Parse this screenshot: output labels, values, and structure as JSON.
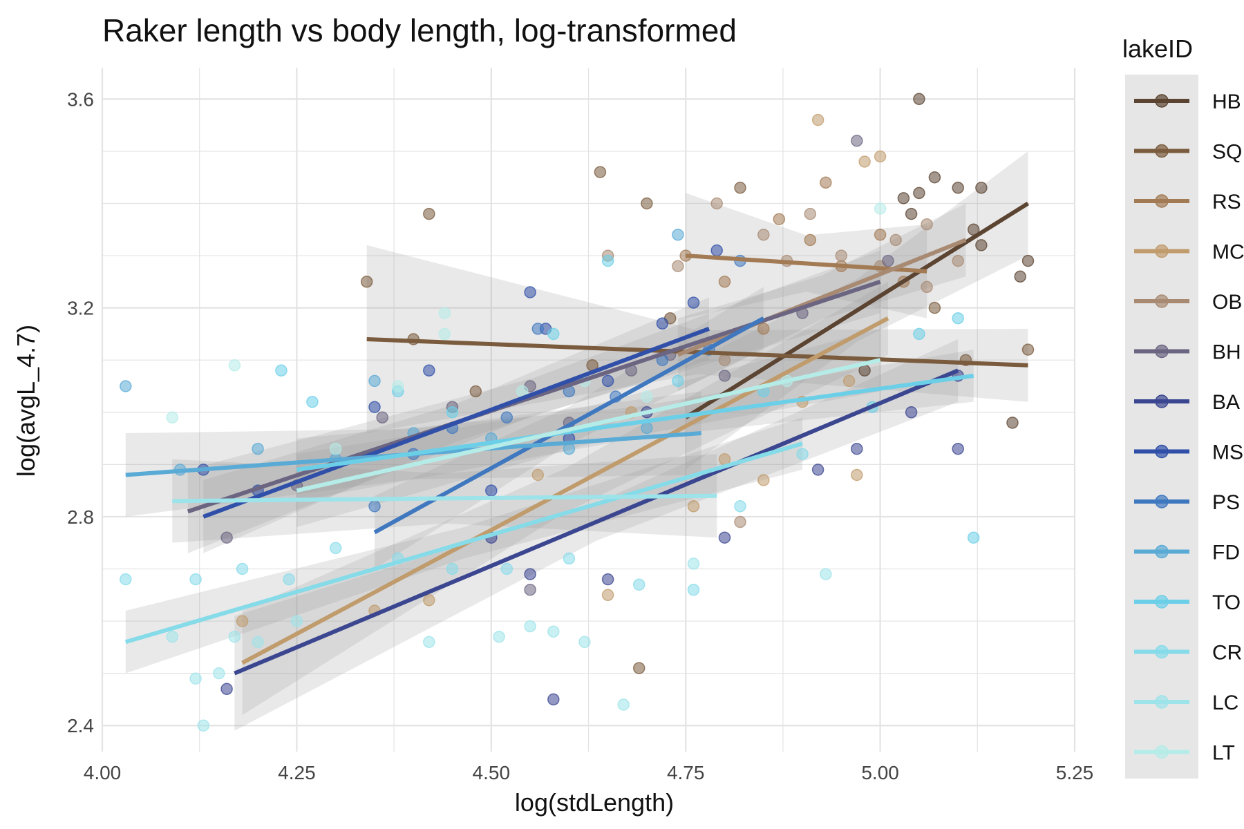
{
  "chart_data": {
    "type": "scatter",
    "title": "Raker length vs body length, log-transformed",
    "xlabel": "log(stdLength)",
    "ylabel": "log(avgL_4.7)",
    "xlim": [
      4.0,
      5.25
    ],
    "ylim": [
      2.35,
      3.66
    ],
    "x_ticks": [
      "4.00",
      "4.25",
      "4.50",
      "4.75",
      "5.00",
      "5.25"
    ],
    "y_ticks": [
      "2.4",
      "2.8",
      "3.2",
      "3.6"
    ],
    "grid": true,
    "legend_title": "lakeID",
    "legend_position": "right",
    "series": [
      {
        "name": "HB",
        "color": "#5b4431",
        "fit": {
          "x": [
            4.75,
            5.19
          ],
          "y": [
            2.99,
            3.4
          ],
          "band": [
            0.1,
            0.1
          ]
        },
        "points": [
          [
            4.98,
            3.08
          ],
          [
            5.05,
            3.6
          ],
          [
            5.05,
            3.42
          ],
          [
            5.07,
            3.45
          ],
          [
            5.1,
            3.43
          ],
          [
            5.13,
            3.43
          ],
          [
            5.12,
            3.35
          ],
          [
            5.13,
            3.32
          ],
          [
            5.18,
            3.26
          ],
          [
            5.19,
            3.29
          ],
          [
            5.17,
            2.98
          ],
          [
            5.03,
            3.41
          ],
          [
            5.04,
            3.38
          ]
        ]
      },
      {
        "name": "SQ",
        "color": "#7a5b3d",
        "fit": {
          "x": [
            4.34,
            5.19
          ],
          "y": [
            3.14,
            3.09
          ],
          "band": [
            0.18,
            0.07
          ]
        },
        "points": [
          [
            4.34,
            3.25
          ],
          [
            4.42,
            3.38
          ],
          [
            4.64,
            3.46
          ],
          [
            4.7,
            3.4
          ],
          [
            4.63,
            3.09
          ],
          [
            4.69,
            2.51
          ],
          [
            5.07,
            3.2
          ],
          [
            5.19,
            3.12
          ],
          [
            5.11,
            3.1
          ],
          [
            4.82,
            3.43
          ],
          [
            4.73,
            3.18
          ],
          [
            4.4,
            3.14
          ],
          [
            4.48,
            3.04
          ]
        ]
      },
      {
        "name": "RS",
        "color": "#a27a54",
        "fit": {
          "x": [
            4.75,
            5.06
          ],
          "y": [
            3.3,
            3.27
          ],
          "band": [
            0.12,
            0.09
          ]
        },
        "points": [
          [
            4.75,
            3.3
          ],
          [
            4.8,
            3.25
          ],
          [
            4.87,
            3.37
          ],
          [
            4.91,
            3.33
          ],
          [
            4.95,
            3.28
          ],
          [
            5.03,
            3.25
          ],
          [
            4.93,
            3.44
          ],
          [
            4.85,
            3.16
          ],
          [
            5.0,
            3.34
          ]
        ]
      },
      {
        "name": "MC",
        "color": "#c09b6c",
        "fit": {
          "x": [
            4.18,
            5.01
          ],
          "y": [
            2.52,
            3.18
          ],
          "band": [
            0.1,
            0.07
          ]
        },
        "points": [
          [
            4.18,
            2.6
          ],
          [
            4.35,
            2.62
          ],
          [
            4.42,
            2.64
          ],
          [
            4.56,
            2.88
          ],
          [
            4.65,
            2.65
          ],
          [
            4.76,
            2.82
          ],
          [
            4.9,
            3.02
          ],
          [
            4.96,
            3.06
          ],
          [
            5.0,
            3.49
          ],
          [
            4.92,
            3.56
          ],
          [
            4.98,
            3.48
          ],
          [
            4.8,
            2.91
          ],
          [
            4.85,
            2.87
          ],
          [
            4.97,
            2.88
          ],
          [
            4.68,
            3.0
          ]
        ]
      },
      {
        "name": "OB",
        "color": "#a88a73",
        "fit": {
          "x": [
            4.74,
            5.11
          ],
          "y": [
            3.11,
            3.33
          ],
          "band": [
            0.07,
            0.07
          ]
        },
        "points": [
          [
            4.74,
            3.28
          ],
          [
            4.79,
            3.4
          ],
          [
            4.85,
            3.34
          ],
          [
            4.88,
            3.29
          ],
          [
            4.91,
            3.38
          ],
          [
            4.95,
            3.3
          ],
          [
            5.0,
            3.28
          ],
          [
            5.02,
            3.33
          ],
          [
            5.06,
            3.36
          ],
          [
            5.1,
            3.29
          ],
          [
            4.8,
            3.1
          ],
          [
            4.65,
            3.3
          ],
          [
            4.82,
            2.79
          ],
          [
            5.06,
            3.24
          ]
        ]
      },
      {
        "name": "BH",
        "color": "#6b6582",
        "fit": {
          "x": [
            4.11,
            5.0
          ],
          "y": [
            2.81,
            3.25
          ],
          "band": [
            0.08,
            0.06
          ]
        },
        "points": [
          [
            4.16,
            2.76
          ],
          [
            4.25,
            2.86
          ],
          [
            4.36,
            2.99
          ],
          [
            4.45,
            3.01
          ],
          [
            4.55,
            3.05
          ],
          [
            4.6,
            2.98
          ],
          [
            4.68,
            3.08
          ],
          [
            4.73,
            3.11
          ],
          [
            4.8,
            3.07
          ],
          [
            4.9,
            3.19
          ],
          [
            4.97,
            3.52
          ],
          [
            5.01,
            3.29
          ],
          [
            4.55,
            2.66
          ]
        ]
      },
      {
        "name": "BA",
        "color": "#3b4690",
        "fit": {
          "x": [
            4.17,
            5.1
          ],
          "y": [
            2.5,
            3.08
          ],
          "band": [
            0.11,
            0.06
          ]
        },
        "points": [
          [
            4.16,
            2.47
          ],
          [
            4.58,
            2.45
          ],
          [
            4.65,
            2.68
          ],
          [
            4.8,
            2.76
          ],
          [
            4.92,
            2.89
          ],
          [
            4.97,
            2.93
          ],
          [
            5.04,
            3.0
          ],
          [
            5.1,
            3.07
          ],
          [
            4.7,
            3.0
          ],
          [
            4.55,
            2.69
          ],
          [
            5.1,
            2.93
          ],
          [
            4.5,
            2.76
          ]
        ]
      },
      {
        "name": "MS",
        "color": "#2f4fa8",
        "fit": {
          "x": [
            4.13,
            4.78
          ],
          "y": [
            2.8,
            3.16
          ],
          "band": [
            0.07,
            0.06
          ]
        },
        "points": [
          [
            4.13,
            2.89
          ],
          [
            4.2,
            2.85
          ],
          [
            4.35,
            3.01
          ],
          [
            4.42,
            3.08
          ],
          [
            4.55,
            3.23
          ],
          [
            4.57,
            3.16
          ],
          [
            4.65,
            3.06
          ],
          [
            4.72,
            3.17
          ],
          [
            4.76,
            3.21
          ],
          [
            4.79,
            3.31
          ],
          [
            4.6,
            2.95
          ],
          [
            4.5,
            2.85
          ]
        ]
      },
      {
        "name": "PS",
        "color": "#3f78bf",
        "fit": {
          "x": [
            4.35,
            4.85
          ],
          "y": [
            2.77,
            3.18
          ],
          "band": [
            0.07,
            0.06
          ]
        },
        "points": [
          [
            4.35,
            2.82
          ],
          [
            4.4,
            2.92
          ],
          [
            4.45,
            2.97
          ],
          [
            4.52,
            2.99
          ],
          [
            4.6,
            3.04
          ],
          [
            4.66,
            3.03
          ],
          [
            4.72,
            3.1
          ],
          [
            4.78,
            3.12
          ],
          [
            4.82,
            3.29
          ],
          [
            4.56,
            3.16
          ]
        ]
      },
      {
        "name": "FD",
        "color": "#5aaad6",
        "fit": {
          "x": [
            4.03,
            4.77
          ],
          "y": [
            2.88,
            2.96
          ],
          "band": [
            0.08,
            0.08
          ]
        },
        "points": [
          [
            4.03,
            3.05
          ],
          [
            4.1,
            2.89
          ],
          [
            4.2,
            2.93
          ],
          [
            4.3,
            2.91
          ],
          [
            4.4,
            2.96
          ],
          [
            4.5,
            2.95
          ],
          [
            4.6,
            2.93
          ],
          [
            4.7,
            2.97
          ],
          [
            4.74,
            3.34
          ],
          [
            4.35,
            3.06
          ]
        ]
      },
      {
        "name": "TO",
        "color": "#6ccfe8",
        "fit": {
          "x": [
            4.25,
            5.12
          ],
          "y": [
            2.89,
            3.07
          ],
          "band": [
            0.06,
            0.05
          ]
        },
        "points": [
          [
            4.23,
            3.08
          ],
          [
            4.27,
            3.02
          ],
          [
            4.38,
            3.04
          ],
          [
            4.45,
            3.0
          ],
          [
            4.58,
            3.15
          ],
          [
            4.65,
            3.29
          ],
          [
            4.74,
            3.06
          ],
          [
            4.85,
            3.04
          ],
          [
            5.1,
            3.18
          ],
          [
            5.12,
            2.76
          ],
          [
            5.05,
            3.15
          ],
          [
            4.99,
            3.01
          ]
        ]
      },
      {
        "name": "CR",
        "color": "#86dbe9",
        "fit": {
          "x": [
            4.03,
            4.9
          ],
          "y": [
            2.56,
            2.94
          ],
          "band": [
            0.06,
            0.05
          ]
        },
        "points": [
          [
            4.03,
            2.68
          ],
          [
            4.12,
            2.68
          ],
          [
            4.18,
            2.7
          ],
          [
            4.24,
            2.68
          ],
          [
            4.3,
            2.74
          ],
          [
            4.38,
            2.72
          ],
          [
            4.45,
            2.7
          ],
          [
            4.52,
            2.7
          ],
          [
            4.6,
            2.72
          ],
          [
            4.69,
            2.67
          ],
          [
            4.76,
            2.66
          ],
          [
            4.82,
            2.82
          ],
          [
            4.9,
            2.92
          ]
        ]
      },
      {
        "name": "LC",
        "color": "#9de3ea",
        "fit": {
          "x": [
            4.09,
            4.79
          ],
          "y": [
            2.83,
            2.84
          ],
          "band": [
            0.08,
            0.08
          ]
        },
        "points": [
          [
            4.09,
            2.57
          ],
          [
            4.12,
            2.49
          ],
          [
            4.15,
            2.5
          ],
          [
            4.13,
            2.4
          ],
          [
            4.17,
            2.57
          ],
          [
            4.2,
            2.56
          ],
          [
            4.42,
            2.56
          ],
          [
            4.51,
            2.57
          ],
          [
            4.55,
            2.59
          ],
          [
            4.58,
            2.58
          ],
          [
            4.62,
            2.56
          ],
          [
            4.67,
            2.44
          ],
          [
            4.76,
            2.71
          ],
          [
            4.93,
            2.69
          ],
          [
            4.25,
            2.6
          ]
        ]
      },
      {
        "name": "LT",
        "color": "#b5ece8",
        "fit": {
          "x": [
            4.25,
            5.0
          ],
          "y": [
            2.85,
            3.1
          ],
          "band": [
            0.07,
            0.06
          ]
        },
        "points": [
          [
            4.17,
            3.09
          ],
          [
            4.44,
            3.19
          ],
          [
            4.44,
            3.15
          ],
          [
            4.38,
            3.05
          ],
          [
            4.54,
            3.04
          ],
          [
            4.62,
            3.06
          ],
          [
            4.7,
            3.03
          ],
          [
            4.88,
            3.06
          ],
          [
            5.0,
            3.39
          ],
          [
            4.09,
            2.99
          ],
          [
            4.3,
            2.93
          ]
        ]
      }
    ]
  }
}
